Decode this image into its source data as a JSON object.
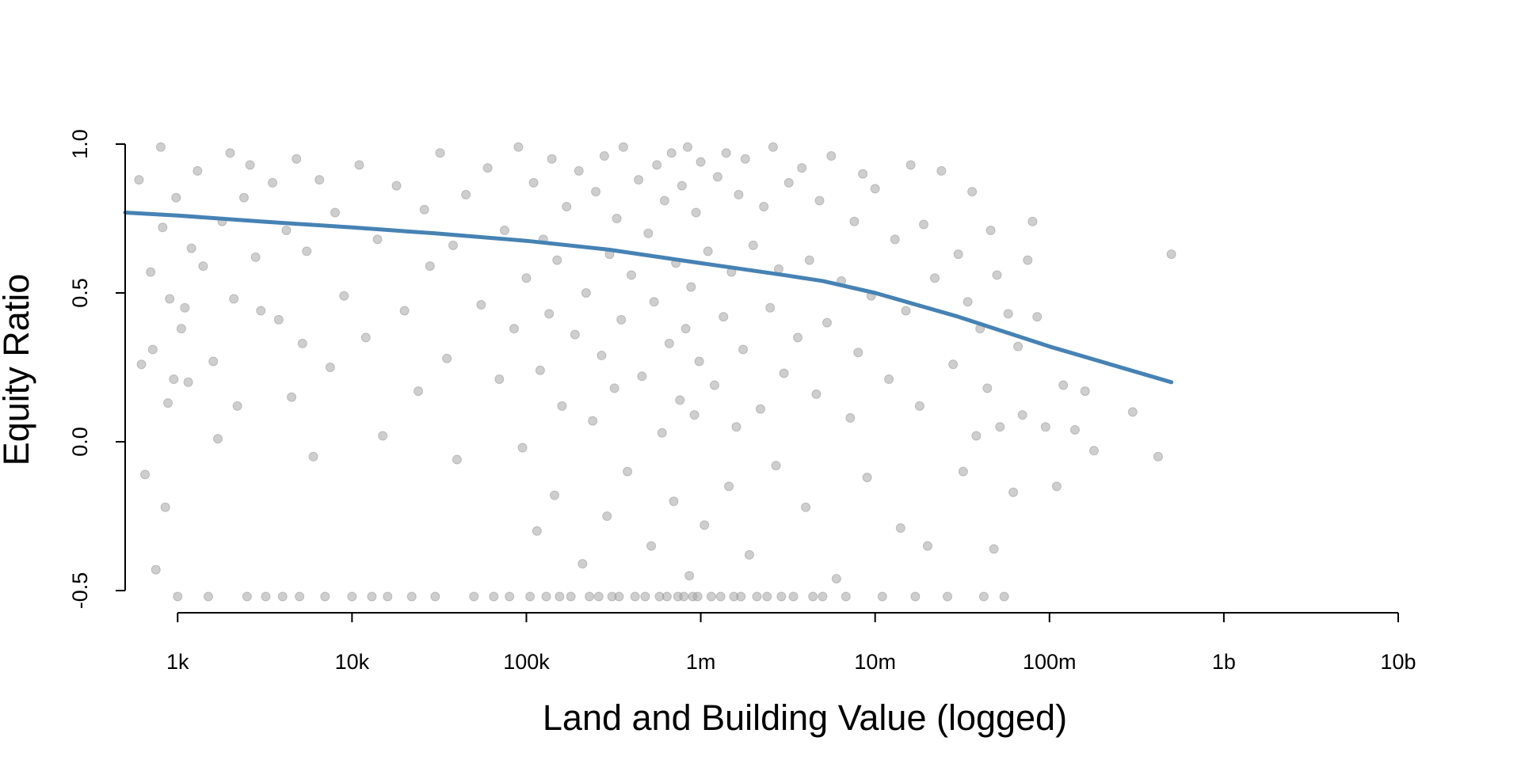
{
  "chart_data": {
    "type": "scatter",
    "title": "",
    "xlabel": "Land and Building Value (logged)",
    "ylabel": "Equity Ratio",
    "x_scale": "log10",
    "xlim": [
      500,
      10000000000
    ],
    "ylim": [
      -0.5,
      1.0
    ],
    "x_ticks": [
      {
        "value": 1000,
        "label": "1k"
      },
      {
        "value": 10000,
        "label": "10k"
      },
      {
        "value": 100000,
        "label": "100k"
      },
      {
        "value": 1000000,
        "label": "1m"
      },
      {
        "value": 10000000,
        "label": "10m"
      },
      {
        "value": 100000000,
        "label": "100m"
      },
      {
        "value": 1000000000,
        "label": "1b"
      },
      {
        "value": 10000000000,
        "label": "10b"
      }
    ],
    "y_ticks": [
      {
        "value": -0.5,
        "label": "-0.5"
      },
      {
        "value": 0.0,
        "label": "0.0"
      },
      {
        "value": 0.5,
        "label": "0.5"
      },
      {
        "value": 1.0,
        "label": "1.0"
      }
    ],
    "grid": false,
    "legend": "none",
    "colors": {
      "points": "#a6a6a6",
      "trend": "#4682b4"
    },
    "series": [
      {
        "kind": "scatter",
        "points": [
          [
            600,
            0.88
          ],
          [
            620,
            0.26
          ],
          [
            650,
            -0.11
          ],
          [
            700,
            0.57
          ],
          [
            720,
            0.31
          ],
          [
            750,
            -0.43
          ],
          [
            800,
            0.99
          ],
          [
            820,
            0.72
          ],
          [
            850,
            -0.22
          ],
          [
            880,
            0.13
          ],
          [
            900,
            0.48
          ],
          [
            950,
            0.21
          ],
          [
            980,
            0.82
          ],
          [
            1000,
            -0.52
          ],
          [
            1050,
            0.38
          ],
          [
            1100,
            0.45
          ],
          [
            1150,
            0.2
          ],
          [
            1200,
            0.65
          ],
          [
            1300,
            0.91
          ],
          [
            1400,
            0.59
          ],
          [
            1500,
            -0.52
          ],
          [
            1600,
            0.27
          ],
          [
            1700,
            0.01
          ],
          [
            1800,
            0.74
          ],
          [
            2000,
            0.97
          ],
          [
            2100,
            0.48
          ],
          [
            2200,
            0.12
          ],
          [
            2400,
            0.82
          ],
          [
            2500,
            -0.52
          ],
          [
            2600,
            0.93
          ],
          [
            2800,
            0.62
          ],
          [
            3000,
            0.44
          ],
          [
            3200,
            -0.52
          ],
          [
            3500,
            0.87
          ],
          [
            3800,
            0.41
          ],
          [
            4000,
            -0.52
          ],
          [
            4200,
            0.71
          ],
          [
            4500,
            0.15
          ],
          [
            4800,
            0.95
          ],
          [
            5000,
            -0.52
          ],
          [
            5200,
            0.33
          ],
          [
            5500,
            0.64
          ],
          [
            6000,
            -0.05
          ],
          [
            6500,
            0.88
          ],
          [
            7000,
            -0.52
          ],
          [
            7500,
            0.25
          ],
          [
            8000,
            0.77
          ],
          [
            9000,
            0.49
          ],
          [
            10000,
            -0.52
          ],
          [
            11000,
            0.93
          ],
          [
            12000,
            0.35
          ],
          [
            13000,
            -0.52
          ],
          [
            14000,
            0.68
          ],
          [
            15000,
            0.02
          ],
          [
            16000,
            -0.52
          ],
          [
            18000,
            0.86
          ],
          [
            20000,
            0.44
          ],
          [
            22000,
            -0.52
          ],
          [
            24000,
            0.17
          ],
          [
            26000,
            0.78
          ],
          [
            28000,
            0.59
          ],
          [
            30000,
            -0.52
          ],
          [
            32000,
            0.97
          ],
          [
            35000,
            0.28
          ],
          [
            38000,
            0.66
          ],
          [
            40000,
            -0.06
          ],
          [
            45000,
            0.83
          ],
          [
            50000,
            -0.52
          ],
          [
            55000,
            0.46
          ],
          [
            60000,
            0.92
          ],
          [
            65000,
            -0.52
          ],
          [
            70000,
            0.21
          ],
          [
            75000,
            0.71
          ],
          [
            80000,
            -0.52
          ],
          [
            85000,
            0.38
          ],
          [
            90000,
            0.99
          ],
          [
            95000,
            -0.02
          ],
          [
            100000,
            0.55
          ],
          [
            105000,
            -0.52
          ],
          [
            110000,
            0.87
          ],
          [
            115000,
            -0.3
          ],
          [
            120000,
            0.24
          ],
          [
            125000,
            0.68
          ],
          [
            130000,
            -0.52
          ],
          [
            135000,
            0.43
          ],
          [
            140000,
            0.95
          ],
          [
            145000,
            -0.18
          ],
          [
            150000,
            0.61
          ],
          [
            155000,
            -0.52
          ],
          [
            160000,
            0.12
          ],
          [
            170000,
            0.79
          ],
          [
            180000,
            -0.52
          ],
          [
            190000,
            0.36
          ],
          [
            200000,
            0.91
          ],
          [
            210000,
            -0.41
          ],
          [
            220000,
            0.5
          ],
          [
            230000,
            -0.52
          ],
          [
            240000,
            0.07
          ],
          [
            250000,
            0.84
          ],
          [
            260000,
            -0.52
          ],
          [
            270000,
            0.29
          ],
          [
            280000,
            0.96
          ],
          [
            290000,
            -0.25
          ],
          [
            300000,
            0.63
          ],
          [
            310000,
            -0.52
          ],
          [
            320000,
            0.18
          ],
          [
            330000,
            0.75
          ],
          [
            340000,
            -0.52
          ],
          [
            350000,
            0.41
          ],
          [
            360000,
            0.99
          ],
          [
            380000,
            -0.1
          ],
          [
            400000,
            0.56
          ],
          [
            420000,
            -0.52
          ],
          [
            440000,
            0.88
          ],
          [
            460000,
            0.22
          ],
          [
            480000,
            -0.52
          ],
          [
            500000,
            0.7
          ],
          [
            520000,
            -0.35
          ],
          [
            540000,
            0.47
          ],
          [
            560000,
            0.93
          ],
          [
            580000,
            -0.52
          ],
          [
            600000,
            0.03
          ],
          [
            620000,
            0.81
          ],
          [
            640000,
            -0.52
          ],
          [
            660000,
            0.33
          ],
          [
            680000,
            0.97
          ],
          [
            700000,
            -0.2
          ],
          [
            720000,
            0.6
          ],
          [
            740000,
            -0.52
          ],
          [
            760000,
            0.14
          ],
          [
            780000,
            0.86
          ],
          [
            800000,
            -0.52
          ],
          [
            820000,
            0.38
          ],
          [
            840000,
            0.99
          ],
          [
            860000,
            -0.45
          ],
          [
            880000,
            0.52
          ],
          [
            900000,
            -0.52
          ],
          [
            920000,
            0.09
          ],
          [
            940000,
            0.77
          ],
          [
            960000,
            -0.52
          ],
          [
            980000,
            0.27
          ],
          [
            1000000,
            0.94
          ],
          [
            1050000,
            -0.28
          ],
          [
            1100000,
            0.64
          ],
          [
            1150000,
            -0.52
          ],
          [
            1200000,
            0.19
          ],
          [
            1250000,
            0.89
          ],
          [
            1300000,
            -0.52
          ],
          [
            1350000,
            0.42
          ],
          [
            1400000,
            0.97
          ],
          [
            1450000,
            -0.15
          ],
          [
            1500000,
            0.57
          ],
          [
            1550000,
            -0.52
          ],
          [
            1600000,
            0.05
          ],
          [
            1650000,
            0.83
          ],
          [
            1700000,
            -0.52
          ],
          [
            1750000,
            0.31
          ],
          [
            1800000,
            0.95
          ],
          [
            1900000,
            -0.38
          ],
          [
            2000000,
            0.66
          ],
          [
            2100000,
            -0.52
          ],
          [
            2200000,
            0.11
          ],
          [
            2300000,
            0.79
          ],
          [
            2400000,
            -0.52
          ],
          [
            2500000,
            0.45
          ],
          [
            2600000,
            0.99
          ],
          [
            2700000,
            -0.08
          ],
          [
            2800000,
            0.58
          ],
          [
            2900000,
            -0.52
          ],
          [
            3000000,
            0.23
          ],
          [
            3200000,
            0.87
          ],
          [
            3400000,
            -0.52
          ],
          [
            3600000,
            0.35
          ],
          [
            3800000,
            0.92
          ],
          [
            4000000,
            -0.22
          ],
          [
            4200000,
            0.61
          ],
          [
            4400000,
            -0.52
          ],
          [
            4600000,
            0.16
          ],
          [
            4800000,
            0.81
          ],
          [
            5000000,
            -0.52
          ],
          [
            5300000,
            0.4
          ],
          [
            5600000,
            0.96
          ],
          [
            6000000,
            -0.46
          ],
          [
            6400000,
            0.54
          ],
          [
            6800000,
            -0.52
          ],
          [
            7200000,
            0.08
          ],
          [
            7600000,
            0.74
          ],
          [
            8000000,
            0.3
          ],
          [
            8500000,
            0.9
          ],
          [
            9000000,
            -0.12
          ],
          [
            9500000,
            0.49
          ],
          [
            10000000,
            0.85
          ],
          [
            11000000,
            -0.52
          ],
          [
            12000000,
            0.21
          ],
          [
            13000000,
            0.68
          ],
          [
            14000000,
            -0.29
          ],
          [
            15000000,
            0.44
          ],
          [
            16000000,
            0.93
          ],
          [
            17000000,
            -0.52
          ],
          [
            18000000,
            0.12
          ],
          [
            19000000,
            0.73
          ],
          [
            20000000,
            -0.35
          ],
          [
            22000000,
            0.55
          ],
          [
            24000000,
            0.91
          ],
          [
            26000000,
            -0.52
          ],
          [
            28000000,
            0.26
          ],
          [
            30000000,
            0.63
          ],
          [
            32000000,
            -0.1
          ],
          [
            34000000,
            0.47
          ],
          [
            36000000,
            0.84
          ],
          [
            38000000,
            0.02
          ],
          [
            40000000,
            0.38
          ],
          [
            42000000,
            -0.52
          ],
          [
            44000000,
            0.18
          ],
          [
            46000000,
            0.71
          ],
          [
            48000000,
            -0.36
          ],
          [
            50000000,
            0.56
          ],
          [
            52000000,
            0.05
          ],
          [
            55000000,
            -0.52
          ],
          [
            58000000,
            0.43
          ],
          [
            62000000,
            -0.17
          ],
          [
            66000000,
            0.32
          ],
          [
            70000000,
            0.09
          ],
          [
            75000000,
            0.61
          ],
          [
            80000000,
            0.74
          ],
          [
            85000000,
            0.42
          ],
          [
            95000000,
            0.05
          ],
          [
            110000000,
            -0.15
          ],
          [
            120000000,
            0.19
          ],
          [
            140000000,
            0.04
          ],
          [
            160000000,
            0.17
          ],
          [
            180000000,
            -0.03
          ],
          [
            300000000,
            0.1
          ],
          [
            420000000,
            -0.05
          ],
          [
            500000000,
            0.63
          ]
        ]
      },
      {
        "kind": "line",
        "points": [
          [
            500,
            0.77
          ],
          [
            1000,
            0.76
          ],
          [
            3000,
            0.74
          ],
          [
            10000,
            0.72
          ],
          [
            30000,
            0.7
          ],
          [
            100000,
            0.675
          ],
          [
            300000,
            0.645
          ],
          [
            1000000,
            0.6
          ],
          [
            3000000,
            0.56
          ],
          [
            5000000,
            0.54
          ],
          [
            10000000,
            0.5
          ],
          [
            30000000,
            0.42
          ],
          [
            100000000,
            0.32
          ],
          [
            500000000,
            0.2
          ]
        ]
      }
    ]
  }
}
